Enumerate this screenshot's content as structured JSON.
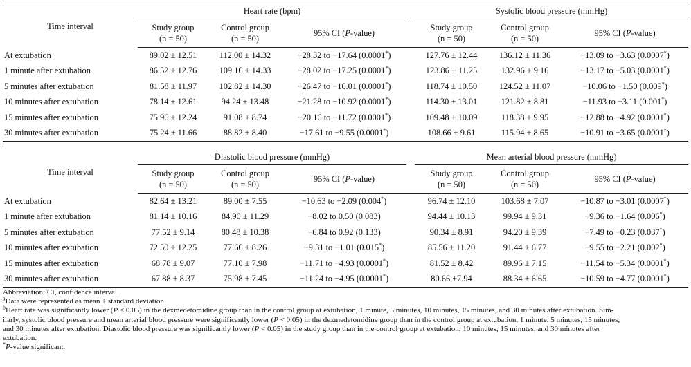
{
  "tables": [
    {
      "time_interval_label": "Time interval",
      "groups": [
        "Heart rate (bpm)",
        "Systolic blood pressure (mmHg)"
      ],
      "columns": {
        "study": "Study group",
        "study_n": "(n = 50)",
        "control": "Control group",
        "control_n": "(n = 50)",
        "ci_pre": "95% CI (",
        "ci_p": "P",
        "ci_post": "-value)"
      },
      "rows": [
        {
          "label": "At extubation",
          "a": "89.02 ± 12.51",
          "b": "112.00 ± 14.32",
          "c": "−28.32 to −17.64 (0.0001",
          "c_sup": "*",
          "d": "127.76 ± 12.44",
          "e": "136.12 ± 11.36",
          "f": "−13.09 to −3.63 (0.0007",
          "f_sup": "*"
        },
        {
          "label": "1 minute after extubation",
          "a": "86.52 ± 12.76",
          "b": "109.16 ± 14.33",
          "c": "−28.02 to −17.25 (0.0001",
          "c_sup": "*",
          "d": "123.86 ± 11.25",
          "e": "132.96 ± 9.16",
          "f": "−13.17 to −5.03 (0.0001",
          "f_sup": "*"
        },
        {
          "label": "5 minutes after extubation",
          "a": "81.58 ± 11.97",
          "b": "102.82 ± 14.30",
          "c": "−26.47 to −16.01 (0.0001",
          "c_sup": "*",
          "d": "118.74 ± 10.50",
          "e": "124.52 ± 11.07",
          "f": "−10.06 to −1.50 (0.009",
          "f_sup": "*"
        },
        {
          "label": "10 minutes after extubation",
          "a": "78.14 ± 12.61",
          "b": "94.24 ± 13.48",
          "c": "−21.28 to −10.92 (0.0001",
          "c_sup": "*",
          "d": "114.30 ± 13.01",
          "e": "121.82 ± 8.81",
          "f": "−11.93 to −3.11 (0.001",
          "f_sup": "*"
        },
        {
          "label": "15 minutes after extubation",
          "a": "75.96 ± 12.24",
          "b": "91.08 ± 8.74",
          "c": "−20.16 to −11.72 (0.0001",
          "c_sup": "*",
          "d": "109.48 ± 10.09",
          "e": "118.38 ± 9.95",
          "f": "−12.88 to −4.92 (0.0001",
          "f_sup": "*"
        },
        {
          "label": "30 minutes after extubation",
          "a": "75.24 ± 11.66",
          "b": "88.82 ± 8.40",
          "c": "−17.61 to −9.55 (0.0001",
          "c_sup": "*",
          "d": "108.66 ± 9.61",
          "e": "115.94 ± 8.65",
          "f": "−10.91 to −3.65 (0.0001",
          "f_sup": "*"
        }
      ]
    },
    {
      "time_interval_label": "Time interval",
      "groups": [
        "Diastolic blood pressure (mmHg)",
        "Mean arterial blood pressure (mmHg)"
      ],
      "columns": {
        "study": "Study group",
        "study_n": "(n = 50)",
        "control": "Control group",
        "control_n": "(n = 50)",
        "ci_pre": "95% CI (",
        "ci_p": "P",
        "ci_post": "-value)"
      },
      "rows": [
        {
          "label": "At extubation",
          "a": "82.64 ± 13.21",
          "b": "89.00 ± 7.55",
          "c": "−10.63 to −2.09 (0.004",
          "c_sup": "*",
          "d": "96.74 ± 12.10",
          "e": "103.68 ± 7.07",
          "f": "−10.87 to −3.01 (0.0007",
          "f_sup": "*"
        },
        {
          "label": "1 minute after extubation",
          "a": "81.14 ± 10.16",
          "b": "84.90 ± 11.29",
          "c": "−8.02 to 0.50 (0.083",
          "c_sup": "",
          "d": "94.44 ± 10.13",
          "e": "99.94 ± 9.31",
          "f": "−9.36 to −1.64 (0.006",
          "f_sup": "*"
        },
        {
          "label": "5 minutes after extubation",
          "a": "77.52 ± 9.14",
          "b": "80.48 ± 10.38",
          "c": "−6.84 to 0.92 (0.133",
          "c_sup": "",
          "d": "90.34 ± 8.91",
          "e": "94.20 ± 9.39",
          "f": "−7.49 to −0.23 (0.037",
          "f_sup": "*"
        },
        {
          "label": "10 minutes after extubation",
          "a": "72.50 ± 12.25",
          "b": "77.66 ± 8.26",
          "c": "−9.31 to −1.01 (0.015",
          "c_sup": "*",
          "d": "85.56 ± 11.20",
          "e": "91.44 ± 6.77",
          "f": "−9.55 to −2.21 (0.002",
          "f_sup": "*"
        },
        {
          "label": "15 minutes after extubation",
          "a": "68.78 ± 9.07",
          "b": "77.10 ± 7.98",
          "c": "−11.71 to −4.93 (0.0001",
          "c_sup": "*",
          "d": "81.52 ± 8.42",
          "e": "89.96 ± 7.15",
          "f": "−11.54 to −5.34 (0.0001",
          "f_sup": "*"
        },
        {
          "label": "30 minutes after extubation",
          "a": "67.88 ± 8.37",
          "b": "75.98 ± 7.45",
          "c": "−11.24 to −4.95 (0.0001",
          "c_sup": "*",
          "d": "80.66 ±7.94",
          "e": "88.34 ± 6.65",
          "f": "−10.59 to −4.77 (0.0001",
          "f_sup": "*"
        }
      ]
    }
  ],
  "footnotes": {
    "abbreviation": "Abbreviation: CI, confidence interval.",
    "a_mark": "a",
    "a_text": "Data were represented as mean ± standard deviation.",
    "b_mark": "b",
    "b_line1_pre": "Heart rate was significantly lower (",
    "b_line1_p": "P",
    "b_line1_post": " < 0.05) in the dexmedetomidine group than in the control group at extubation, 1 minute, 5 minutes, 10 minutes, 15 minutes, and 30 minutes after extubation. Sim-",
    "b_line2_pre": "ilarly, systolic blood pressure and mean arterial blood pressure were significantly lower (",
    "b_line2_p": "P",
    "b_line2_post": " < 0.05) in the dexmedetomidine group than in the control group at extubation, 1 minute, 5 minutes, 15 minutes,",
    "b_line3_pre": "and 30 minutes after extubation. Diastolic blood pressure was significantly lower (",
    "b_line3_p": "P",
    "b_line3_post": " < 0.05) in the study group than in the control group at extubation, 10 minutes, 15 minutes, and 30 minutes after",
    "b_line4": "extubation.",
    "star_mark": "*",
    "star_p": "P",
    "star_text": "-value significant."
  }
}
